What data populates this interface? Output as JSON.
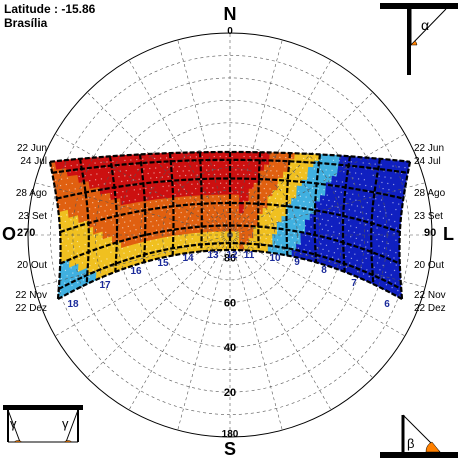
{
  "header": {
    "latitude_label": "Latitude : -15.86",
    "city": "Brasília"
  },
  "compass": {
    "north": "N",
    "south": "S",
    "west": "O",
    "east": "L"
  },
  "azimuth_labels": {
    "north": "0",
    "south": "180",
    "west": "270",
    "east": "90"
  },
  "altitude_labels": [
    "20",
    "40",
    "60",
    "80"
  ],
  "date_labels_left": [
    "22 Jun",
    "24 Jul",
    "28 Ago",
    "23 Set",
    "20 Out",
    "22 Nov",
    "22 Dez"
  ],
  "date_labels_right": [
    "22 Jun",
    "24 Jul",
    "28 Ago",
    "23 Set",
    "20 Out",
    "22 Nov",
    "22 Dez"
  ],
  "hour_labels": [
    "18",
    "17",
    "16",
    "15",
    "14",
    "13",
    "12",
    "11",
    "10",
    "9",
    "8",
    "7",
    "6"
  ],
  "shading_symbols": {
    "alpha": "α",
    "beta": "β",
    "gamma": "γ"
  },
  "colors": {
    "hot": "#cc1010",
    "warm": "#e06010",
    "medium": "#f0c020",
    "cool": "#40b0e0",
    "cold": "#1020c0",
    "hour_label": "#1a2a9a",
    "shading_orange": "#ff8000"
  }
}
